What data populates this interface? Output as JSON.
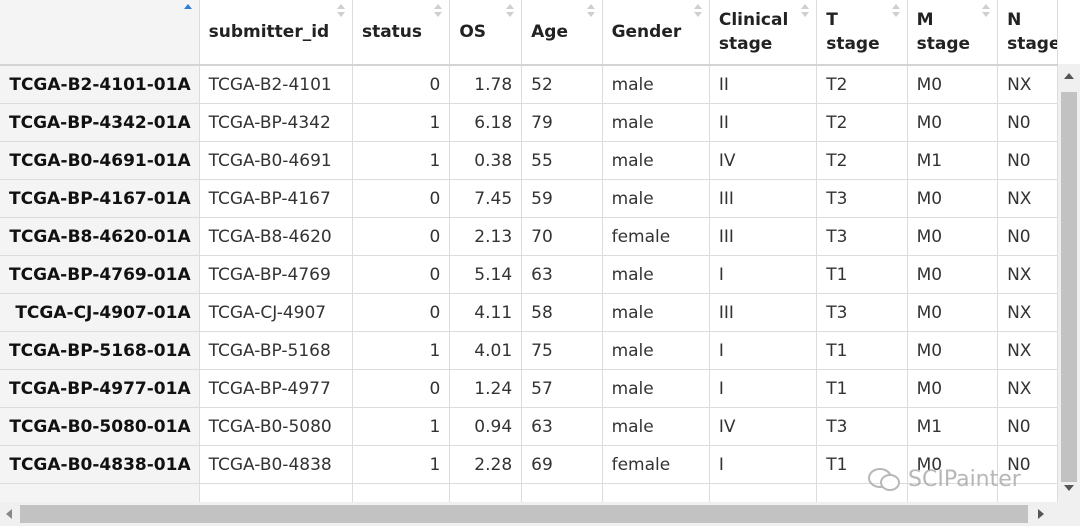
{
  "table": {
    "columns": [
      {
        "label": "",
        "sort": "asc"
      },
      {
        "label": "submitter_id",
        "sort": "none"
      },
      {
        "label": "status",
        "sort": "none"
      },
      {
        "label": "OS",
        "sort": "none"
      },
      {
        "label": "Age",
        "sort": "none"
      },
      {
        "label": "Gender",
        "sort": "none"
      },
      {
        "label": "Clinical stage",
        "sort": "none"
      },
      {
        "label": "T stage",
        "sort": "none"
      },
      {
        "label": "M stage",
        "sort": "none"
      },
      {
        "label": "N stage",
        "sort": "none"
      }
    ],
    "rows": [
      [
        "TCGA-B2-4101-01A",
        "TCGA-B2-4101",
        "0",
        "1.78",
        "52",
        "male",
        "II",
        "T2",
        "M0",
        "NX"
      ],
      [
        "TCGA-BP-4342-01A",
        "TCGA-BP-4342",
        "1",
        "6.18",
        "79",
        "male",
        "II",
        "T2",
        "M0",
        "N0"
      ],
      [
        "TCGA-B0-4691-01A",
        "TCGA-B0-4691",
        "1",
        "0.38",
        "55",
        "male",
        "IV",
        "T2",
        "M1",
        "N0"
      ],
      [
        "TCGA-BP-4167-01A",
        "TCGA-BP-4167",
        "0",
        "7.45",
        "59",
        "male",
        "III",
        "T3",
        "M0",
        "NX"
      ],
      [
        "TCGA-B8-4620-01A",
        "TCGA-B8-4620",
        "0",
        "2.13",
        "70",
        "female",
        "III",
        "T3",
        "M0",
        "N0"
      ],
      [
        "TCGA-BP-4769-01A",
        "TCGA-BP-4769",
        "0",
        "5.14",
        "63",
        "male",
        "I",
        "T1",
        "M0",
        "NX"
      ],
      [
        "TCGA-CJ-4907-01A",
        "TCGA-CJ-4907",
        "0",
        "4.11",
        "58",
        "male",
        "III",
        "T3",
        "M0",
        "NX"
      ],
      [
        "TCGA-BP-5168-01A",
        "TCGA-BP-5168",
        "1",
        "4.01",
        "75",
        "male",
        "I",
        "T1",
        "M0",
        "NX"
      ],
      [
        "TCGA-BP-4977-01A",
        "TCGA-BP-4977",
        "0",
        "1.24",
        "57",
        "male",
        "I",
        "T1",
        "M0",
        "NX"
      ],
      [
        "TCGA-B0-5080-01A",
        "TCGA-B0-5080",
        "1",
        "0.94",
        "63",
        "male",
        "IV",
        "T3",
        "M1",
        "N0"
      ],
      [
        "TCGA-B0-4838-01A",
        "TCGA-B0-4838",
        "1",
        "2.28",
        "69",
        "female",
        "I",
        "T1",
        "M0",
        "N0"
      ],
      [
        "",
        "",
        "",
        "",
        "",
        "",
        "",
        "",
        "",
        ""
      ]
    ]
  },
  "watermark": {
    "text": "SCIPainter",
    "icon": "wechat-icon"
  }
}
